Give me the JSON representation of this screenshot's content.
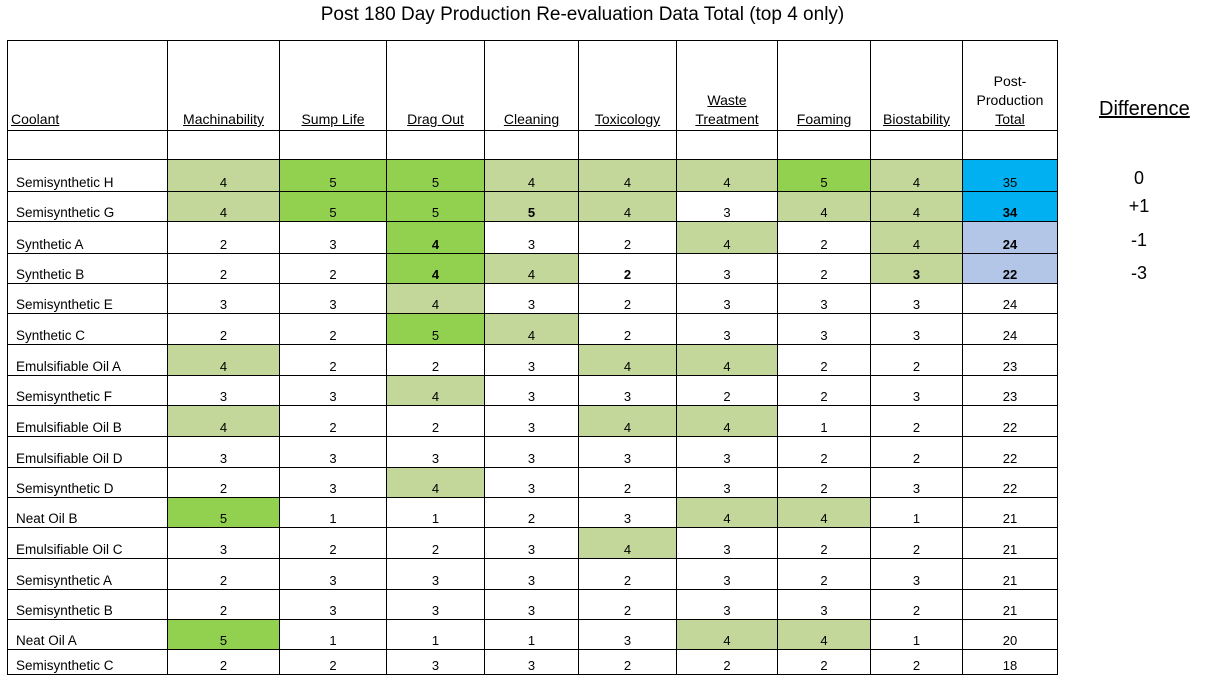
{
  "title": "Post 180 Day Production Re-evaluation Data Total (top 4 only)",
  "headers": [
    "Coolant",
    "Machinability",
    "Sump Life",
    "Drag Out",
    "Cleaning",
    "Toxicology",
    [
      "Waste",
      "Treatment"
    ],
    "Foaming",
    "Biostability",
    [
      "Post-",
      "Production",
      "Total"
    ]
  ],
  "difference_label": "Difference",
  "differences": [
    "0",
    "+1",
    "-1",
    "-3"
  ],
  "colors": {
    "light_green": "#c4d79b",
    "green": "#92d050",
    "cyan": "#00b0f0",
    "light_blue": "#b4c6e7"
  },
  "rows": [
    {
      "name": "Semisynthetic H",
      "values": [
        "4",
        "5",
        "5",
        "4",
        "4",
        "4",
        "5",
        "4",
        "35"
      ],
      "colors": [
        "lg",
        "dg",
        "dg",
        "lg",
        "lg",
        "lg",
        "dg",
        "lg",
        "cy"
      ],
      "bold": []
    },
    {
      "name": "Semisynthetic G",
      "values": [
        "4",
        "5",
        "5",
        "5",
        "4",
        "3",
        "4",
        "4",
        "34"
      ],
      "colors": [
        "lg",
        "dg",
        "dg",
        "lg",
        "lg",
        "",
        "lg",
        "lg",
        "cy"
      ],
      "bold": [
        3,
        8
      ]
    },
    {
      "name": "Synthetic A",
      "values": [
        "2",
        "3",
        "4",
        "3",
        "2",
        "4",
        "2",
        "4",
        "24"
      ],
      "colors": [
        "",
        "",
        "dg",
        "",
        "",
        "lg",
        "",
        "lg",
        "lb"
      ],
      "bold": [
        2,
        8
      ]
    },
    {
      "name": "Synthetic B",
      "values": [
        "2",
        "2",
        "4",
        "4",
        "2",
        "3",
        "2",
        "3",
        "22"
      ],
      "colors": [
        "",
        "",
        "dg",
        "lg",
        "",
        "",
        "",
        "lg",
        "lb"
      ],
      "bold": [
        2,
        4,
        7,
        8
      ]
    },
    {
      "name": "Semisynthetic E",
      "values": [
        "3",
        "3",
        "4",
        "3",
        "2",
        "3",
        "3",
        "3",
        "24"
      ],
      "colors": [
        "",
        "",
        "lg",
        "",
        "",
        "",
        "",
        "",
        ""
      ],
      "bold": []
    },
    {
      "name": "Synthetic C",
      "values": [
        "2",
        "2",
        "5",
        "4",
        "2",
        "3",
        "3",
        "3",
        "24"
      ],
      "colors": [
        "",
        "",
        "dg",
        "lg",
        "",
        "",
        "",
        "",
        ""
      ],
      "bold": []
    },
    {
      "name": "Emulsifiable Oil A",
      "values": [
        "4",
        "2",
        "2",
        "3",
        "4",
        "4",
        "2",
        "2",
        "23"
      ],
      "colors": [
        "lg",
        "",
        "",
        "",
        "lg",
        "lg",
        "",
        "",
        ""
      ],
      "bold": []
    },
    {
      "name": "Semisynthetic F",
      "values": [
        "3",
        "3",
        "4",
        "3",
        "3",
        "2",
        "2",
        "3",
        "23"
      ],
      "colors": [
        "",
        "",
        "lg",
        "",
        "",
        "",
        "",
        "",
        ""
      ],
      "bold": []
    },
    {
      "name": "Emulsifiable Oil B",
      "values": [
        "4",
        "2",
        "2",
        "3",
        "4",
        "4",
        "1",
        "2",
        "22"
      ],
      "colors": [
        "lg",
        "",
        "",
        "",
        "lg",
        "lg",
        "",
        "",
        ""
      ],
      "bold": []
    },
    {
      "name": "Emulsifiable Oil D",
      "values": [
        "3",
        "3",
        "3",
        "3",
        "3",
        "3",
        "2",
        "2",
        "22"
      ],
      "colors": [
        "",
        "",
        "",
        "",
        "",
        "",
        "",
        "",
        ""
      ],
      "bold": []
    },
    {
      "name": "Semisynthetic D",
      "values": [
        "2",
        "3",
        "4",
        "3",
        "2",
        "3",
        "2",
        "3",
        "22"
      ],
      "colors": [
        "",
        "",
        "lg",
        "",
        "",
        "",
        "",
        "",
        ""
      ],
      "bold": []
    },
    {
      "name": "Neat Oil B",
      "values": [
        "5",
        "1",
        "1",
        "2",
        "3",
        "4",
        "4",
        "1",
        "21"
      ],
      "colors": [
        "dg",
        "",
        "",
        "",
        "",
        "lg",
        "lg",
        "",
        ""
      ],
      "bold": []
    },
    {
      "name": "Emulsifiable Oil C",
      "values": [
        "3",
        "2",
        "2",
        "3",
        "4",
        "3",
        "2",
        "2",
        "21"
      ],
      "colors": [
        "",
        "",
        "",
        "",
        "lg",
        "",
        "",
        "",
        ""
      ],
      "bold": []
    },
    {
      "name": "Semisynthetic A",
      "values": [
        "2",
        "3",
        "3",
        "3",
        "2",
        "3",
        "2",
        "3",
        "21"
      ],
      "colors": [
        "",
        "",
        "",
        "",
        "",
        "",
        "",
        "",
        ""
      ],
      "bold": []
    },
    {
      "name": "Semisynthetic B",
      "values": [
        "2",
        "3",
        "3",
        "3",
        "2",
        "3",
        "3",
        "2",
        "21"
      ],
      "colors": [
        "",
        "",
        "",
        "",
        "",
        "",
        "",
        "",
        ""
      ],
      "bold": []
    },
    {
      "name": "Neat Oil A",
      "values": [
        "5",
        "1",
        "1",
        "1",
        "3",
        "4",
        "4",
        "1",
        "20"
      ],
      "colors": [
        "dg",
        "",
        "",
        "",
        "",
        "lg",
        "lg",
        "",
        ""
      ],
      "bold": []
    },
    {
      "name": "Semisynthetic C",
      "values": [
        "2",
        "2",
        "3",
        "3",
        "2",
        "2",
        "2",
        "2",
        "18"
      ],
      "colors": [
        "",
        "",
        "",
        "",
        "",
        "",
        "",
        "",
        ""
      ],
      "bold": []
    }
  ]
}
